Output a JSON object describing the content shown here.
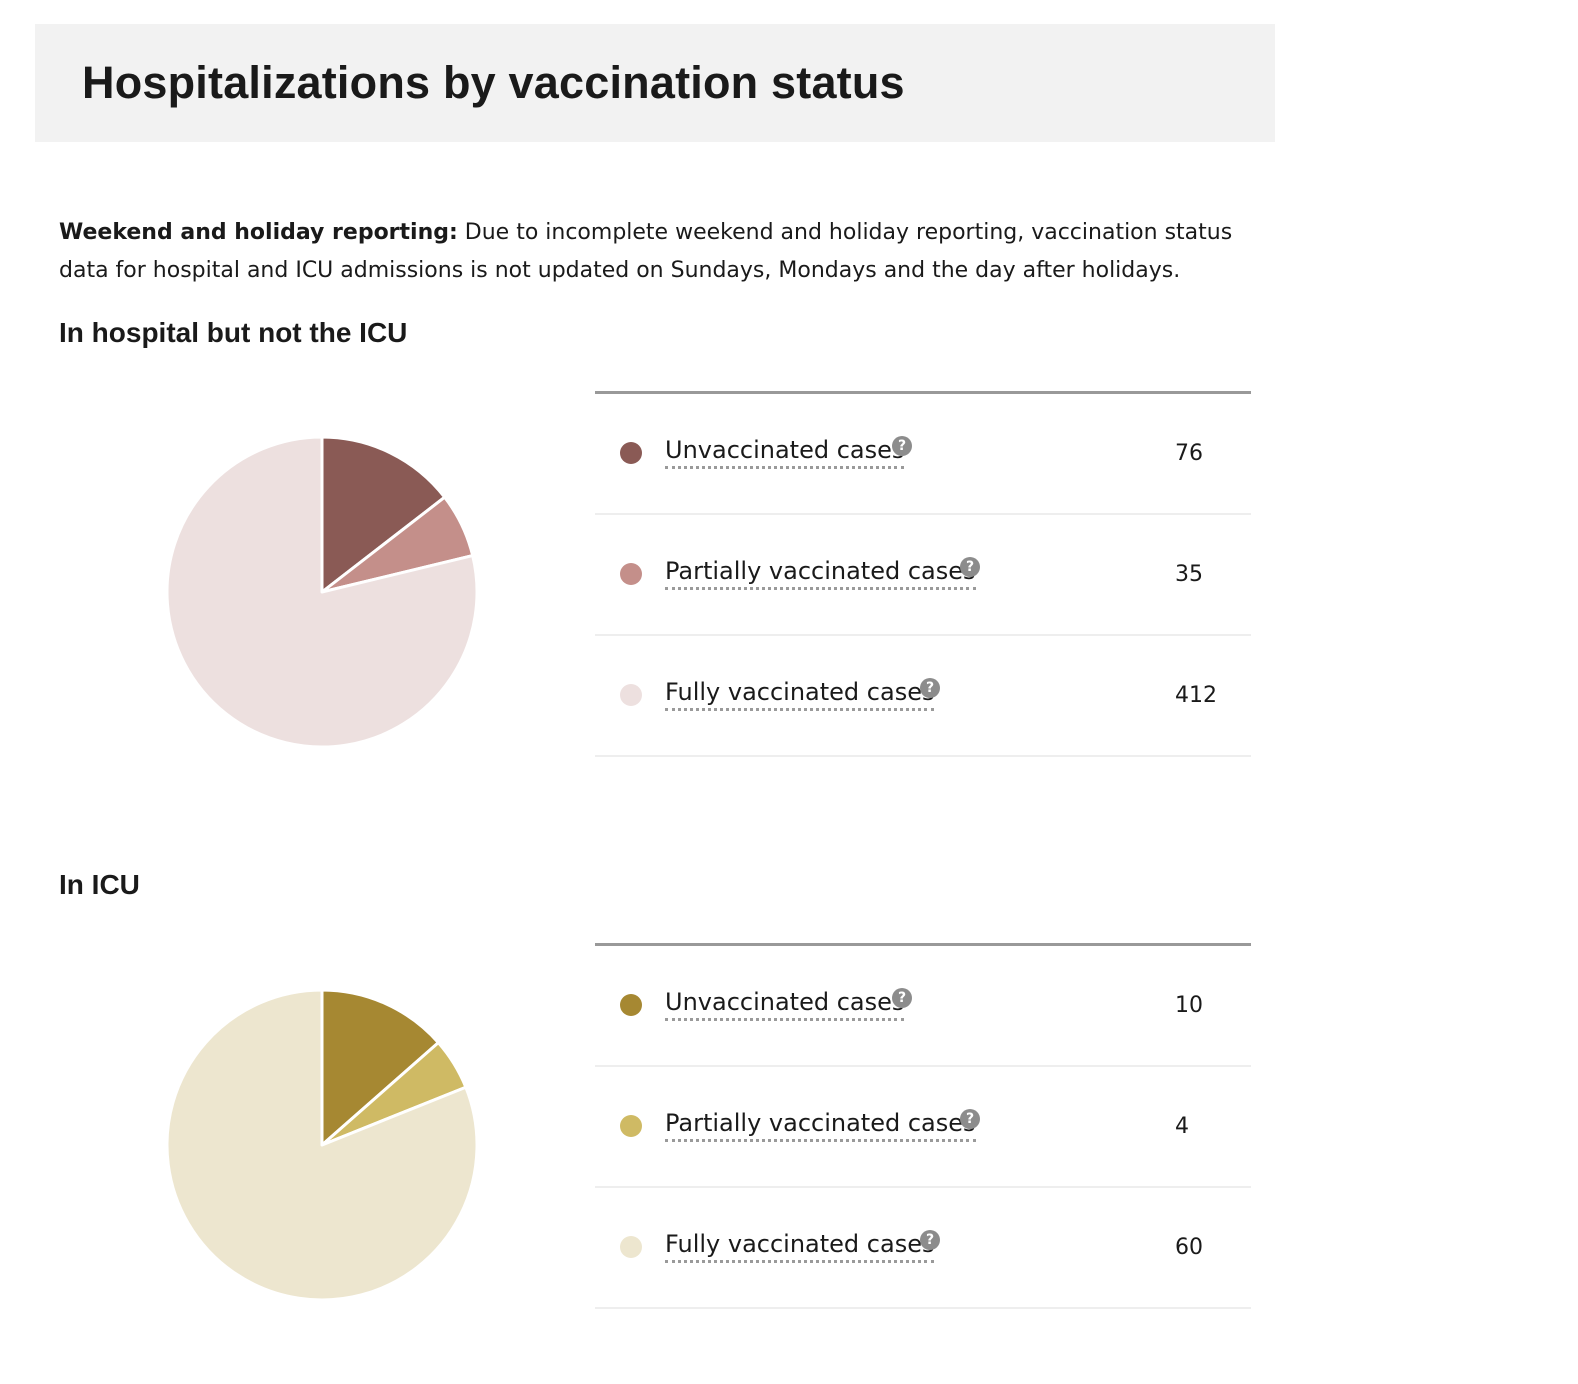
{
  "page": {
    "title": "Hospitalizations by vaccination status",
    "note_bold": "Weekend and holiday reporting:",
    "note_text": " Due to incomplete weekend and holiday reporting, vaccination status data for hospital and ICU admissions is not updated on Sundays, Mondays and the day after holidays."
  },
  "help_glyph": "?",
  "chart_data": [
    {
      "type": "pie",
      "title": "In hospital but not the ICU",
      "categories": [
        "Unvaccinated cases",
        "Partially vaccinated cases",
        "Fully vaccinated cases"
      ],
      "values": [
        76,
        35,
        412
      ],
      "colors": [
        "#8a5a55",
        "#c48f8a",
        "#ede0df"
      ]
    },
    {
      "type": "pie",
      "title": "In ICU",
      "categories": [
        "Unvaccinated cases",
        "Partially vaccinated cases",
        "Fully vaccinated cases"
      ],
      "values": [
        10,
        4,
        60
      ],
      "colors": [
        "#a68832",
        "#cfba64",
        "#ede6cf"
      ]
    }
  ]
}
